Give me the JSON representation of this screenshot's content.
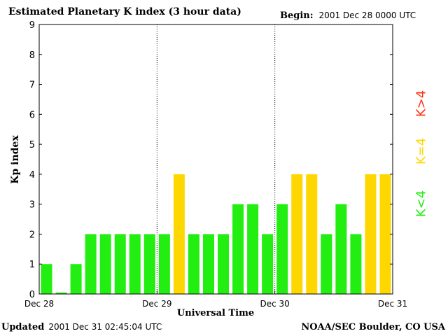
{
  "header": {
    "title": "Estimated Planetary K index (3 hour data)",
    "begin_label": "Begin:",
    "begin_value": "2001 Dec 28 0000 UTC"
  },
  "footer": {
    "updated_label": "Updated",
    "updated_value": "2001 Dec 31 02:45:04 UTC",
    "source": "NOAA/SEC Boulder, CO USA"
  },
  "legend": {
    "greater": "K>4",
    "equal": "K=4",
    "less": "K<4"
  },
  "colors": {
    "less": "#22ee11",
    "equal": "#ffd700",
    "greater": "#ff3311"
  },
  "chart_data": {
    "type": "bar",
    "title": "Estimated Planetary K index (3 hour data)",
    "xlabel": "Universal Time",
    "ylabel": "Kp index",
    "ylim": [
      0,
      9
    ],
    "yticks": [
      "0",
      "1",
      "2",
      "3",
      "4",
      "5",
      "6",
      "7",
      "8",
      "9"
    ],
    "xticks": [
      "Dec 28",
      "Dec 29",
      "Dec 30",
      "Dec 31"
    ],
    "day_separators": true,
    "values": [
      1,
      0.05,
      1,
      2,
      2,
      2,
      2,
      2,
      2,
      4,
      2,
      2,
      2,
      3,
      3,
      2,
      3,
      4,
      4,
      2,
      3,
      2,
      4,
      4
    ]
  }
}
